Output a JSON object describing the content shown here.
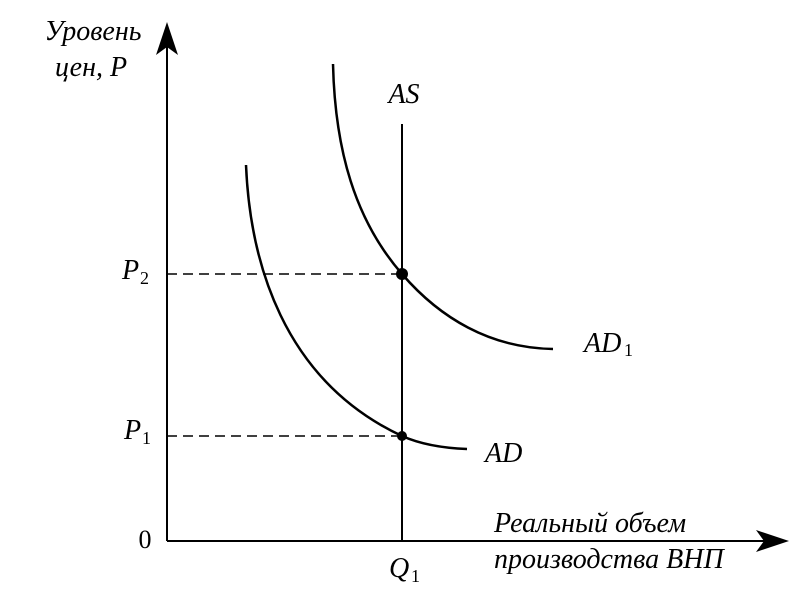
{
  "diagram": {
    "y_axis_label_line1": "Уровень",
    "y_axis_label_line2": "цен, P",
    "x_axis_label_line1": "Реальный объем",
    "x_axis_label_line2": "производства ВНП",
    "origin_label": "0",
    "as_label": "AS",
    "ad_label": "AD",
    "ad1_label": "AD",
    "ad1_subscript": "1",
    "p1_label": "P",
    "p1_subscript": "1",
    "p2_label": "P",
    "p2_subscript": "2",
    "q1_label": "Q",
    "q1_subscript": "1"
  }
}
